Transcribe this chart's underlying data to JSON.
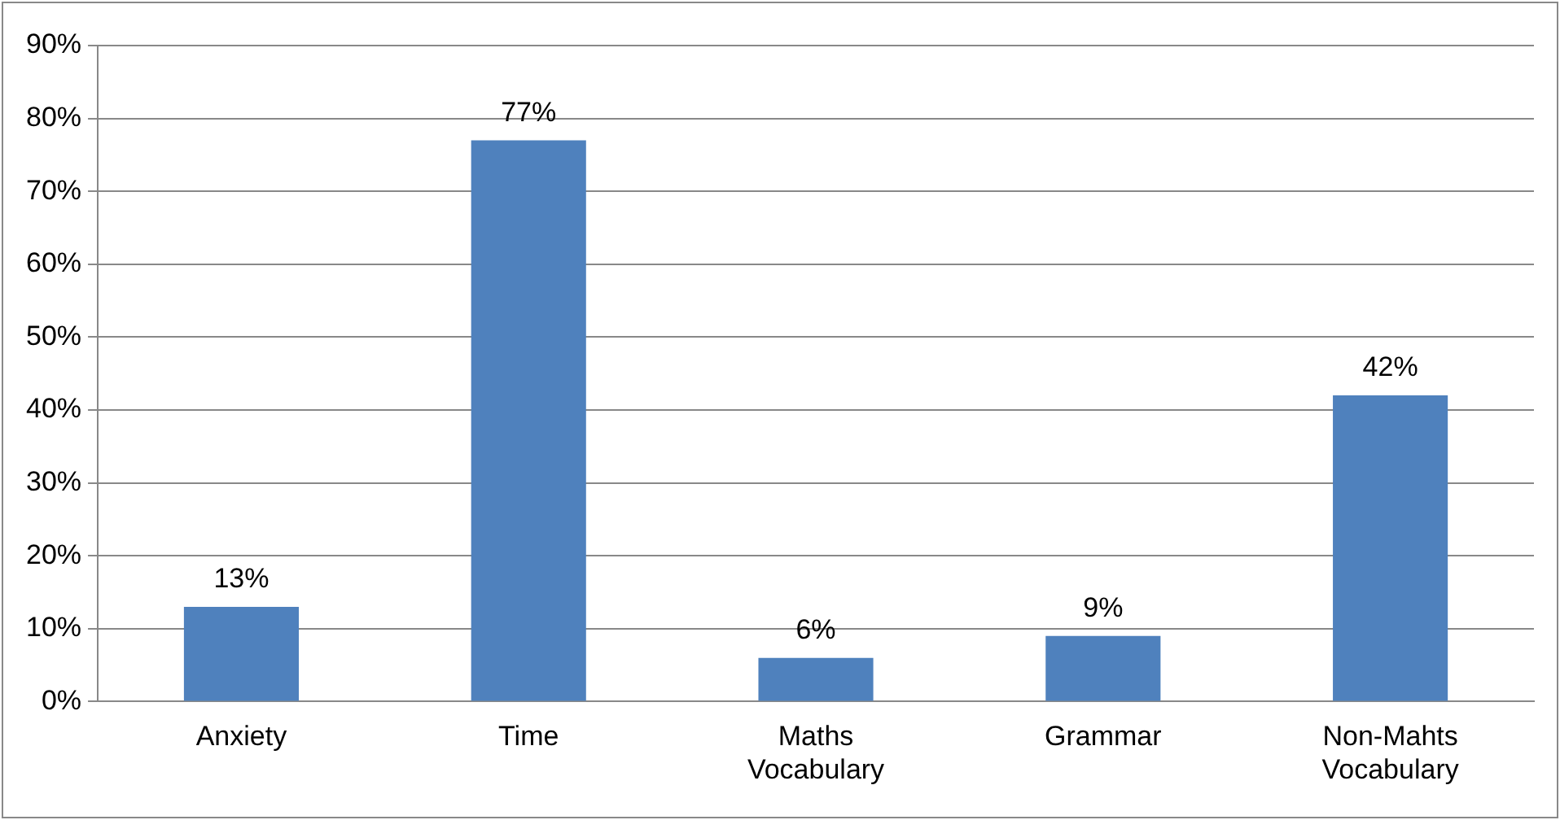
{
  "chart_data": {
    "type": "bar",
    "categories": [
      "Anxiety",
      "Time",
      "Maths Vocabulary",
      "Grammar",
      "Non-Mahts Vocabulary"
    ],
    "values": [
      13,
      77,
      6,
      9,
      42
    ],
    "color": "#4f81bd",
    "value_labels": [
      "13%",
      "77%",
      "6%",
      "9%",
      "42%"
    ],
    "ylim": [
      0,
      90
    ],
    "yticks": [
      {
        "value": 0,
        "label": "0%"
      },
      {
        "value": 10,
        "label": "10%"
      },
      {
        "value": 20,
        "label": "20%"
      },
      {
        "value": 30,
        "label": "30%"
      },
      {
        "value": 40,
        "label": "40%"
      },
      {
        "value": 50,
        "label": "50%"
      },
      {
        "value": 60,
        "label": "60%"
      },
      {
        "value": 70,
        "label": "70%"
      },
      {
        "value": 80,
        "label": "80%"
      },
      {
        "value": 90,
        "label": "90%"
      }
    ],
    "grid": "y",
    "legend": false
  }
}
